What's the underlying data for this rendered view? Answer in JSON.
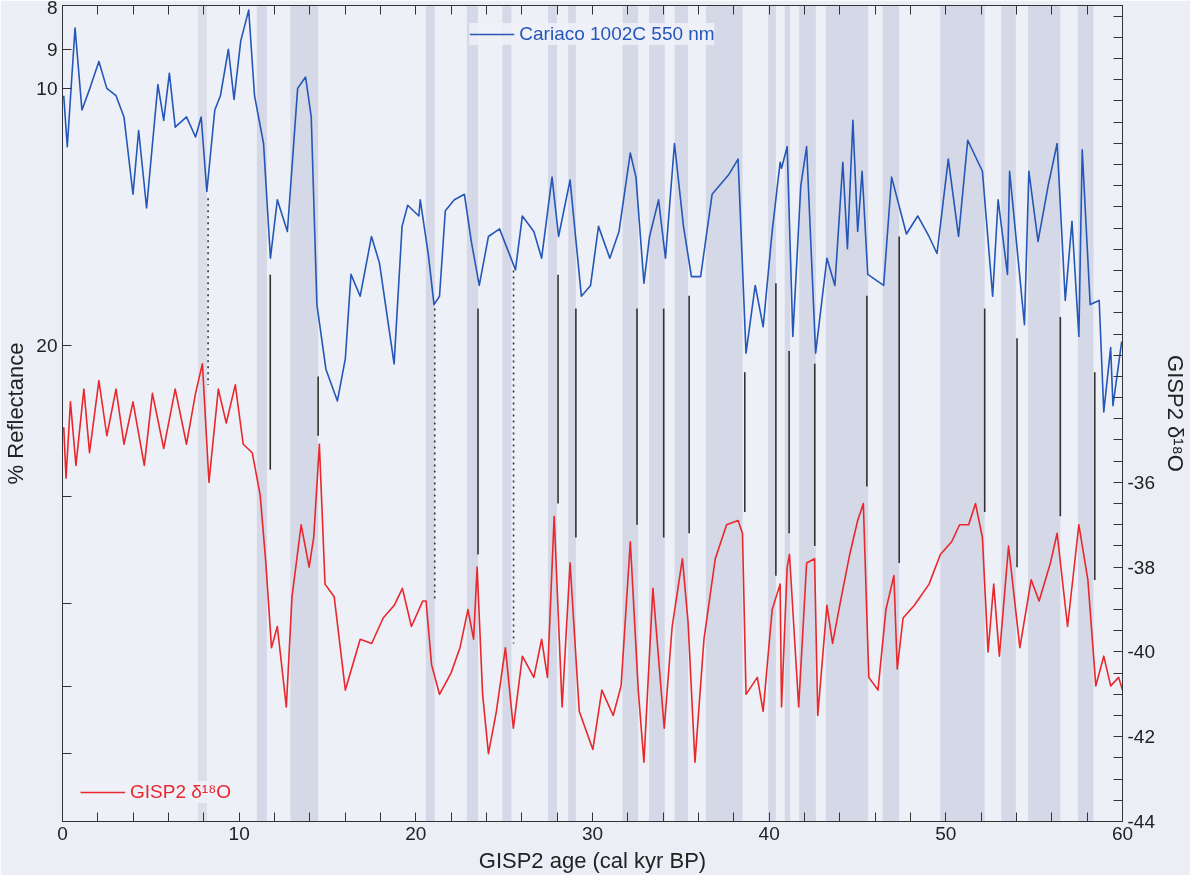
{
  "chart_data": {
    "type": "line",
    "xlabel": "GISP2 age (cal kyr BP)",
    "ylabel": "% Reflectance",
    "y2label": "GISP2 δ¹⁸O",
    "log": "y",
    "grid": false,
    "legend": "top",
    "xlim": [
      0,
      60
    ],
    "xticks": [
      0,
      {
        "value": 2,
        "label": null
      },
      {
        "value": 4,
        "label": null
      },
      {
        "value": 6,
        "label": null
      },
      {
        "value": 8,
        "label": null
      },
      10,
      {
        "value": 12,
        "label": null
      },
      {
        "value": 14,
        "label": null
      },
      {
        "value": 16,
        "label": null
      },
      {
        "value": 18,
        "label": null
      },
      20,
      {
        "value": 22,
        "label": null
      },
      {
        "value": 24,
        "label": null
      },
      {
        "value": 26,
        "label": null
      },
      {
        "value": 28,
        "label": null
      },
      30,
      {
        "value": 32,
        "label": null
      },
      {
        "value": 34,
        "label": null
      },
      {
        "value": 36,
        "label": null
      },
      {
        "value": 38,
        "label": null
      },
      40,
      {
        "value": 42,
        "label": null
      },
      {
        "value": 44,
        "label": null
      },
      {
        "value": 46,
        "label": null
      },
      {
        "value": 48,
        "label": null
      },
      50,
      {
        "value": 52,
        "label": null
      },
      {
        "value": 54,
        "label": null
      },
      {
        "value": 56,
        "label": null
      },
      {
        "value": 58,
        "label": null
      },
      60
    ],
    "ylim": [
      72,
      8
    ],
    "yticks": [
      8,
      9,
      10,
      20,
      {
        "value": 30,
        "label": null
      },
      {
        "value": 40,
        "label": null
      },
      {
        "value": 50,
        "label": null
      },
      {
        "value": 60,
        "label": null
      }
    ],
    "y2lim": [
      -44,
      -24.75
    ],
    "y2ticks": [
      -44,
      {
        "value": -43.5,
        "label": null
      },
      {
        "value": -43,
        "label": null
      },
      {
        "value": -42.5,
        "label": null
      },
      -42,
      {
        "value": -41.5,
        "label": null
      },
      {
        "value": -41,
        "label": null
      },
      {
        "value": -40.5,
        "label": null
      },
      -40,
      {
        "value": -39.5,
        "label": null
      },
      {
        "value": -39,
        "label": null
      },
      {
        "value": -38.5,
        "label": null
      },
      -38,
      {
        "value": -37.5,
        "label": null
      },
      {
        "value": -37,
        "label": null
      },
      {
        "value": -36.5,
        "label": null
      },
      -36,
      {
        "value": -35.5,
        "label": null
      },
      {
        "value": -35,
        "label": null
      },
      {
        "value": -34.5,
        "label": null
      },
      {
        "value": -34,
        "label": null
      },
      {
        "value": -33.5,
        "label": null
      },
      {
        "value": -33,
        "label": null
      },
      {
        "value": -32.5,
        "label": null
      },
      {
        "value": -32,
        "label": null
      },
      {
        "value": -31.5,
        "label": null
      },
      {
        "value": -31,
        "label": null
      },
      {
        "value": -30.5,
        "label": null
      },
      {
        "value": -30,
        "label": null
      },
      {
        "value": -29.5,
        "label": null
      },
      {
        "value": -29,
        "label": null
      },
      {
        "value": -28.5,
        "label": null
      },
      {
        "value": -28,
        "label": null
      },
      {
        "value": -27.5,
        "label": null
      },
      {
        "value": -27,
        "label": null
      },
      {
        "value": -26.5,
        "label": null
      },
      {
        "value": -26,
        "label": null
      },
      {
        "value": -25.5,
        "label": null
      },
      {
        "value": -25,
        "label": null
      }
    ],
    "bands": [
      {
        "axis": "x",
        "from": 7.67,
        "to": 8.18,
        "color": "#dcdfea"
      },
      {
        "axis": "x",
        "from": 11.0,
        "to": 11.57,
        "color": "#d5d8e6"
      },
      {
        "axis": "x",
        "from": 12.9,
        "to": 14.47,
        "color": "#d5d8e6"
      },
      {
        "axis": "x",
        "from": 20.57,
        "to": 21.07,
        "color": "#d5d8e6"
      },
      {
        "axis": "x",
        "from": 22.89,
        "to": 23.52,
        "color": "#d5d8e6"
      },
      {
        "axis": "x",
        "from": 24.9,
        "to": 25.41,
        "color": "#d5d8e6"
      },
      {
        "axis": "x",
        "from": 27.48,
        "to": 27.99,
        "color": "#d5d8e6"
      },
      {
        "axis": "x",
        "from": 28.62,
        "to": 29.06,
        "color": "#d5d8e6"
      },
      {
        "axis": "x",
        "from": 31.7,
        "to": 32.58,
        "color": "#d5d8e6"
      },
      {
        "axis": "x",
        "from": 33.2,
        "to": 34.09,
        "color": "#d5d8e6"
      },
      {
        "axis": "x",
        "from": 34.65,
        "to": 35.41,
        "color": "#d5d8e6"
      },
      {
        "axis": "x",
        "from": 36.42,
        "to": 38.49,
        "color": "#d5d8e6"
      },
      {
        "axis": "x",
        "from": 39.94,
        "to": 40.38,
        "color": "#d5d8e6"
      },
      {
        "axis": "x",
        "from": 40.88,
        "to": 41.19,
        "color": "#d5d8e6"
      },
      {
        "axis": "x",
        "from": 41.7,
        "to": 42.64,
        "color": "#d5d8e6"
      },
      {
        "axis": "x",
        "from": 43.2,
        "to": 45.6,
        "color": "#d5d8e6"
      },
      {
        "axis": "x",
        "from": 46.42,
        "to": 47.36,
        "color": "#d5d8e6"
      },
      {
        "axis": "x",
        "from": 49.69,
        "to": 52.2,
        "color": "#d5d8e6"
      },
      {
        "axis": "x",
        "from": 53.14,
        "to": 53.96,
        "color": "#d5d8e6"
      },
      {
        "axis": "x",
        "from": 54.65,
        "to": 56.48,
        "color": "#d5d8e6"
      },
      {
        "axis": "x",
        "from": 57.48,
        "to": 58.36,
        "color": "#d5d8e6"
      }
    ],
    "series": [
      {
        "name": "Cariaco 1002C 550 nm",
        "color": "#2457b8",
        "axis": "y",
        "x": [
          0.07,
          0.27,
          0.71,
          1.1,
          1.55,
          2.06,
          2.51,
          3.03,
          3.48,
          3.99,
          4.31,
          4.76,
          5.4,
          5.73,
          6.05,
          6.38,
          7.02,
          7.53,
          7.85,
          8.17,
          8.62,
          8.94,
          9.39,
          9.71,
          10.09,
          10.54,
          10.87,
          11.38,
          11.77,
          12.16,
          12.73,
          13.31,
          13.76,
          14.08,
          14.4,
          14.91,
          15.56,
          16.01,
          16.33,
          16.85,
          17.49,
          17.94,
          18.77,
          19.22,
          19.54,
          20.17,
          20.25,
          20.7,
          21.03,
          21.34,
          21.67,
          22.18,
          22.75,
          23.14,
          23.59,
          24.11,
          24.74,
          25.64,
          26.03,
          26.68,
          27.12,
          27.71,
          28.08,
          28.73,
          29.37,
          29.89,
          30.34,
          30.98,
          31.5,
          32.14,
          32.46,
          32.91,
          33.23,
          33.74,
          34.13,
          34.64,
          35.15,
          35.6,
          36.12,
          36.77,
          37.73,
          38.24,
          38.69,
          39.21,
          39.66,
          40.17,
          40.62,
          40.7,
          41.02,
          41.34,
          41.79,
          42.12,
          42.63,
          43.27,
          43.72,
          44.17,
          44.43,
          44.74,
          45.01,
          45.26,
          45.58,
          46.48,
          46.93,
          47.77,
          48.41,
          49.05,
          49.5,
          50.14,
          50.72,
          51.24,
          52.07,
          52.65,
          52.96,
          53.49,
          53.61,
          54.45,
          54.7,
          55.22,
          55.79,
          56.3,
          56.76,
          57.14,
          57.53,
          57.72,
          58.17,
          58.68,
          58.94,
          59.33,
          59.46,
          59.95,
          60.0
        ],
        "values": [
          10.2,
          11.7,
          8.5,
          10.6,
          10.0,
          9.3,
          10.0,
          10.2,
          10.8,
          13.3,
          11.2,
          13.8,
          9.9,
          10.9,
          9.6,
          11.1,
          10.8,
          11.4,
          10.8,
          13.2,
          10.6,
          10.2,
          9.0,
          10.3,
          8.8,
          8.1,
          10.2,
          11.6,
          15.8,
          13.5,
          14.7,
          10.0,
          9.7,
          10.8,
          17.9,
          21.3,
          23.2,
          20.7,
          16.5,
          17.5,
          14.9,
          16.0,
          21.0,
          14.5,
          13.7,
          14.1,
          13.5,
          15.6,
          17.9,
          17.5,
          13.9,
          13.5,
          13.3,
          15.1,
          17.0,
          14.9,
          14.6,
          16.3,
          14.1,
          14.7,
          15.8,
          12.7,
          14.9,
          12.8,
          17.5,
          17.0,
          14.5,
          15.8,
          14.7,
          11.9,
          12.7,
          16.9,
          14.9,
          13.5,
          15.8,
          11.6,
          14.5,
          16.6,
          16.6,
          13.3,
          12.6,
          12.1,
          20.4,
          17.0,
          19.0,
          14.7,
          12.2,
          12.4,
          11.7,
          19.5,
          13.0,
          11.7,
          20.4,
          15.8,
          17.0,
          12.2,
          15.4,
          10.9,
          14.7,
          12.5,
          16.5,
          17.0,
          12.7,
          14.8,
          14.1,
          14.9,
          15.6,
          12.1,
          14.9,
          11.5,
          12.5,
          17.5,
          13.5,
          16.5,
          12.5,
          18.9,
          12.5,
          15.1,
          13.0,
          11.6,
          17.7,
          14.3,
          19.5,
          11.8,
          17.9,
          17.7,
          23.9,
          20.1,
          23.5,
          19.8,
          19.8
        ]
      },
      {
        "name": "GISP2 δ¹⁸O",
        "color": "#e8282c",
        "axis": "y2",
        "x": [
          0.07,
          0.2,
          0.45,
          0.76,
          1.21,
          1.53,
          2.06,
          2.51,
          3.03,
          3.48,
          3.99,
          4.63,
          5.09,
          5.73,
          6.38,
          7.02,
          7.53,
          7.92,
          8.29,
          8.82,
          9.27,
          9.78,
          10.23,
          10.74,
          11.19,
          11.51,
          11.83,
          12.16,
          12.67,
          12.99,
          13.51,
          13.96,
          14.22,
          14.54,
          14.86,
          15.38,
          16.01,
          16.85,
          17.5,
          18.15,
          18.78,
          19.24,
          19.75,
          20.39,
          20.58,
          20.89,
          21.34,
          21.99,
          22.5,
          22.95,
          23.27,
          23.47,
          23.78,
          24.11,
          24.56,
          25.07,
          25.52,
          26.03,
          26.68,
          27.12,
          27.45,
          27.83,
          28.28,
          28.73,
          29.25,
          30.02,
          30.53,
          31.17,
          31.62,
          32.14,
          32.59,
          32.91,
          33.42,
          34.06,
          34.51,
          35.09,
          35.41,
          35.8,
          36.31,
          36.95,
          37.59,
          38.24,
          38.49,
          38.69,
          39.33,
          39.66,
          40.17,
          40.62,
          40.7,
          41.02,
          41.15,
          41.67,
          42.12,
          42.57,
          42.75,
          43.27,
          43.59,
          44.04,
          44.56,
          45.01,
          45.33,
          45.64,
          46.16,
          46.61,
          47.06,
          47.25,
          47.58,
          48.22,
          49.05,
          49.69,
          50.33,
          50.78,
          51.29,
          51.68,
          52.07,
          52.39,
          52.71,
          53.03,
          53.55,
          54.19,
          54.83,
          55.28,
          55.92,
          56.3,
          56.89,
          57.53,
          58.04,
          58.49,
          58.94,
          59.33,
          59.78,
          60.0
        ],
        "values": [
          -34.7,
          -35.9,
          -34.1,
          -35.6,
          -33.8,
          -35.3,
          -33.6,
          -34.9,
          -33.8,
          -35.1,
          -34.1,
          -35.6,
          -33.9,
          -35.2,
          -33.8,
          -35.1,
          -33.9,
          -33.2,
          -36.0,
          -33.8,
          -34.6,
          -33.7,
          -35.1,
          -35.3,
          -36.3,
          -37.9,
          -39.9,
          -39.4,
          -41.3,
          -38.7,
          -37.0,
          -38.0,
          -37.3,
          -35.1,
          -38.4,
          -38.7,
          -40.9,
          -39.7,
          -39.8,
          -39.2,
          -38.9,
          -38.5,
          -39.4,
          -38.8,
          -38.8,
          -40.3,
          -41.0,
          -40.5,
          -39.9,
          -39.0,
          -39.7,
          -38.0,
          -41.0,
          -42.4,
          -41.4,
          -39.9,
          -41.8,
          -40.1,
          -40.6,
          -39.7,
          -40.6,
          -36.8,
          -41.3,
          -37.9,
          -41.4,
          -42.3,
          -40.9,
          -41.5,
          -40.8,
          -37.4,
          -40.9,
          -42.6,
          -38.5,
          -41.8,
          -39.4,
          -37.8,
          -39.3,
          -42.6,
          -39.7,
          -37.8,
          -37.0,
          -36.9,
          -37.2,
          -41.0,
          -40.6,
          -41.4,
          -39.0,
          -38.4,
          -41.3,
          -38.0,
          -37.7,
          -41.3,
          -37.9,
          -37.8,
          -41.5,
          -38.9,
          -39.8,
          -38.8,
          -37.7,
          -36.9,
          -36.5,
          -40.6,
          -40.9,
          -39.0,
          -38.2,
          -40.4,
          -39.2,
          -38.9,
          -38.4,
          -37.7,
          -37.4,
          -37.0,
          -37.0,
          -36.5,
          -37.3,
          -40.0,
          -38.4,
          -40.1,
          -37.5,
          -39.9,
          -38.3,
          -38.8,
          -37.9,
          -37.2,
          -39.4,
          -37.0,
          -38.3,
          -40.8,
          -40.1,
          -40.8,
          -40.6,
          -40.9
        ]
      },
      {
        "type": "line",
        "axis": "y2",
        "color": "#333333",
        "line_style": "dotted",
        "x": [
          8.24,
          8.24
        ],
        "values": [
          -29.3,
          -33.7
        ]
      },
      {
        "type": "line",
        "axis": "y2",
        "color": "#333333",
        "line_style": "solid",
        "x": [
          11.76,
          11.76
        ],
        "values": [
          -31.1,
          -35.7
        ]
      },
      {
        "type": "line",
        "axis": "y2",
        "color": "#333333",
        "line_style": "solid",
        "x": [
          14.47,
          14.47
        ],
        "values": [
          -33.5,
          -34.9
        ]
      },
      {
        "type": "line",
        "axis": "y2",
        "color": "#333333",
        "line_style": "dotted",
        "x": [
          21.07,
          21.07
        ],
        "values": [
          -31.9,
          -38.8
        ]
      },
      {
        "type": "line",
        "axis": "y2",
        "color": "#333333",
        "line_style": "solid",
        "x": [
          23.52,
          23.52
        ],
        "values": [
          -31.9,
          -37.7
        ]
      },
      {
        "type": "line",
        "axis": "y2",
        "color": "#333333",
        "line_style": "dotted",
        "x": [
          25.53,
          25.53
        ],
        "values": [
          -31.0,
          -39.8
        ]
      },
      {
        "type": "line",
        "axis": "y2",
        "color": "#333333",
        "line_style": "solid",
        "x": [
          28.05,
          28.05
        ],
        "values": [
          -31.1,
          -36.5
        ]
      },
      {
        "type": "line",
        "axis": "y2",
        "color": "#333333",
        "line_style": "solid",
        "x": [
          29.06,
          29.06
        ],
        "values": [
          -31.9,
          -37.3
        ]
      },
      {
        "type": "line",
        "axis": "y2",
        "color": "#333333",
        "line_style": "solid",
        "x": [
          32.52,
          32.52
        ],
        "values": [
          -31.9,
          -37.0
        ]
      },
      {
        "type": "line",
        "axis": "y2",
        "color": "#333333",
        "line_style": "solid",
        "x": [
          34.03,
          34.03
        ],
        "values": [
          -31.9,
          -37.3
        ]
      },
      {
        "type": "line",
        "axis": "y2",
        "color": "#333333",
        "line_style": "solid",
        "x": [
          35.47,
          35.47
        ],
        "values": [
          -31.6,
          -37.2
        ]
      },
      {
        "type": "line",
        "axis": "y2",
        "color": "#333333",
        "line_style": "solid",
        "x": [
          38.62,
          38.62
        ],
        "values": [
          -33.4,
          -36.7
        ]
      },
      {
        "type": "line",
        "axis": "y2",
        "color": "#333333",
        "line_style": "solid",
        "x": [
          40.38,
          40.38
        ],
        "values": [
          -31.3,
          -38.2
        ]
      },
      {
        "type": "line",
        "axis": "y2",
        "color": "#333333",
        "line_style": "solid",
        "x": [
          41.13,
          41.13
        ],
        "values": [
          -32.9,
          -37.2
        ]
      },
      {
        "type": "line",
        "axis": "y2",
        "color": "#333333",
        "line_style": "solid",
        "x": [
          42.58,
          42.58
        ],
        "values": [
          -33.2,
          -37.5
        ]
      },
      {
        "type": "line",
        "axis": "y2",
        "color": "#333333",
        "line_style": "solid",
        "x": [
          45.53,
          45.53
        ],
        "values": [
          -31.6,
          -36.1
        ]
      },
      {
        "type": "line",
        "axis": "y2",
        "color": "#333333",
        "line_style": "solid",
        "x": [
          47.36,
          47.36
        ],
        "values": [
          -30.2,
          -37.9
        ]
      },
      {
        "type": "line",
        "axis": "y2",
        "color": "#333333",
        "line_style": "solid",
        "x": [
          52.2,
          52.2
        ],
        "values": [
          -31.9,
          -36.7
        ]
      },
      {
        "type": "line",
        "axis": "y2",
        "color": "#333333",
        "line_style": "solid",
        "x": [
          54.03,
          54.03
        ],
        "values": [
          -32.6,
          -38.0
        ]
      },
      {
        "type": "line",
        "axis": "y2",
        "color": "#333333",
        "line_style": "solid",
        "x": [
          56.48,
          56.48
        ],
        "values": [
          -32.1,
          -36.8
        ]
      },
      {
        "type": "line",
        "axis": "y2",
        "color": "#333333",
        "line_style": "solid",
        "x": [
          58.43,
          58.43
        ],
        "values": [
          -33.4,
          -38.3
        ]
      }
    ]
  }
}
